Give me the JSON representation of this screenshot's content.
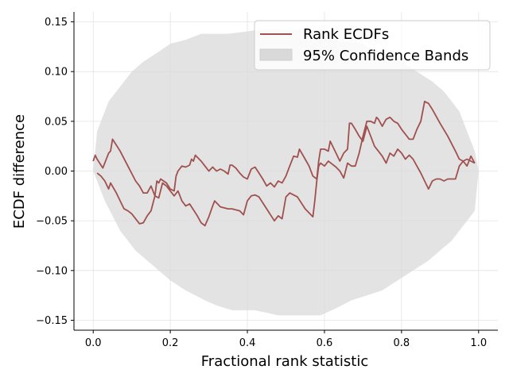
{
  "chart_data": {
    "type": "line",
    "xlabel": "Fractional rank statistic",
    "ylabel": "ECDF difference",
    "xlim": [
      -0.05,
      1.05
    ],
    "ylim": [
      -0.16,
      0.16
    ],
    "grid": true,
    "legend_position": "top-right",
    "x_ticks": [
      0.0,
      0.2,
      0.4,
      0.6,
      0.8,
      1.0
    ],
    "x_tick_labels": [
      "0.0",
      "0.2",
      "0.4",
      "0.6",
      "0.8",
      "1.0"
    ],
    "y_ticks": [
      0.15,
      0.1,
      0.05,
      0.0,
      -0.05,
      -0.1,
      -0.15
    ],
    "y_tick_labels": [
      "0.15",
      "0.10",
      "0.05",
      "0.00",
      "−0.05",
      "−0.10",
      "−0.15"
    ],
    "series": [
      {
        "name": "Rank ECDFs",
        "color": "#a0504f",
        "points": [
          [
            0.0,
            0.01
          ],
          [
            0.005,
            0.016
          ],
          [
            0.01,
            0.012
          ],
          [
            0.025,
            0.003
          ],
          [
            0.04,
            0.018
          ],
          [
            0.045,
            0.02
          ],
          [
            0.05,
            0.032
          ],
          [
            0.07,
            0.02
          ],
          [
            0.09,
            0.005
          ],
          [
            0.11,
            -0.01
          ],
          [
            0.12,
            -0.015
          ],
          [
            0.13,
            -0.022
          ],
          [
            0.14,
            -0.022
          ],
          [
            0.15,
            -0.015
          ],
          [
            0.16,
            -0.025
          ],
          [
            0.17,
            -0.027
          ],
          [
            0.18,
            -0.012
          ],
          [
            0.19,
            -0.015
          ],
          [
            0.2,
            -0.02
          ],
          [
            0.21,
            -0.025
          ],
          [
            0.22,
            -0.02
          ],
          [
            0.23,
            -0.03
          ],
          [
            0.24,
            -0.035
          ],
          [
            0.25,
            -0.033
          ],
          [
            0.27,
            -0.045
          ],
          [
            0.28,
            -0.052
          ],
          [
            0.29,
            -0.055
          ],
          [
            0.3,
            -0.046
          ],
          [
            0.31,
            -0.035
          ],
          [
            0.315,
            -0.03
          ],
          [
            0.33,
            -0.036
          ],
          [
            0.34,
            -0.037
          ],
          [
            0.35,
            -0.038
          ],
          [
            0.36,
            -0.038
          ],
          [
            0.37,
            -0.039
          ],
          [
            0.38,
            -0.04
          ],
          [
            0.39,
            -0.044
          ],
          [
            0.4,
            -0.03
          ],
          [
            0.41,
            -0.025
          ],
          [
            0.42,
            -0.024
          ],
          [
            0.43,
            -0.026
          ],
          [
            0.45,
            -0.038
          ],
          [
            0.47,
            -0.05
          ],
          [
            0.48,
            -0.045
          ],
          [
            0.49,
            -0.048
          ],
          [
            0.5,
            -0.026
          ],
          [
            0.51,
            -0.022
          ],
          [
            0.53,
            -0.026
          ],
          [
            0.55,
            -0.038
          ],
          [
            0.57,
            -0.046
          ],
          [
            0.575,
            -0.03
          ],
          [
            0.58,
            -0.01
          ],
          [
            0.585,
            0.005
          ],
          [
            0.59,
            0.008
          ],
          [
            0.6,
            0.005
          ],
          [
            0.61,
            0.01
          ],
          [
            0.62,
            0.007
          ],
          [
            0.63,
            0.004
          ],
          [
            0.64,
            0.0
          ],
          [
            0.65,
            -0.007
          ],
          [
            0.66,
            0.008
          ],
          [
            0.67,
            0.005
          ],
          [
            0.68,
            0.005
          ],
          [
            0.69,
            0.018
          ],
          [
            0.7,
            0.035
          ],
          [
            0.71,
            0.05
          ],
          [
            0.72,
            0.05
          ],
          [
            0.73,
            0.048
          ],
          [
            0.735,
            0.054
          ],
          [
            0.74,
            0.052
          ],
          [
            0.75,
            0.045
          ],
          [
            0.76,
            0.052
          ],
          [
            0.77,
            0.054
          ],
          [
            0.78,
            0.05
          ],
          [
            0.79,
            0.048
          ],
          [
            0.8,
            0.042
          ],
          [
            0.81,
            0.037
          ],
          [
            0.82,
            0.032
          ],
          [
            0.83,
            0.032
          ],
          [
            0.84,
            0.042
          ],
          [
            0.85,
            0.05
          ],
          [
            0.86,
            0.07
          ],
          [
            0.87,
            0.068
          ],
          [
            0.88,
            0.062
          ],
          [
            0.9,
            0.048
          ],
          [
            0.92,
            0.035
          ],
          [
            0.94,
            0.02
          ],
          [
            0.95,
            0.012
          ],
          [
            0.96,
            0.01
          ],
          [
            0.97,
            0.005
          ],
          [
            0.98,
            0.015
          ],
          [
            0.99,
            0.008
          ]
        ]
      },
      {
        "name": "Rank ECDFs",
        "color": "#a0504f",
        "points": [
          [
            0.01,
            -0.002
          ],
          [
            0.02,
            -0.005
          ],
          [
            0.03,
            -0.01
          ],
          [
            0.04,
            -0.018
          ],
          [
            0.045,
            -0.012
          ],
          [
            0.06,
            -0.022
          ],
          [
            0.07,
            -0.03
          ],
          [
            0.08,
            -0.038
          ],
          [
            0.09,
            -0.04
          ],
          [
            0.1,
            -0.043
          ],
          [
            0.11,
            -0.048
          ],
          [
            0.12,
            -0.053
          ],
          [
            0.13,
            -0.052
          ],
          [
            0.14,
            -0.045
          ],
          [
            0.15,
            -0.04
          ],
          [
            0.16,
            -0.025
          ],
          [
            0.165,
            -0.01
          ],
          [
            0.17,
            -0.012
          ],
          [
            0.175,
            -0.008
          ],
          [
            0.19,
            -0.012
          ],
          [
            0.2,
            -0.018
          ],
          [
            0.21,
            -0.02
          ],
          [
            0.215,
            -0.005
          ],
          [
            0.22,
            0.0
          ],
          [
            0.23,
            0.005
          ],
          [
            0.24,
            0.004
          ],
          [
            0.25,
            0.006
          ],
          [
            0.255,
            0.012
          ],
          [
            0.26,
            0.01
          ],
          [
            0.265,
            0.016
          ],
          [
            0.28,
            0.01
          ],
          [
            0.29,
            0.005
          ],
          [
            0.3,
            0.0
          ],
          [
            0.31,
            0.004
          ],
          [
            0.32,
            0.0
          ],
          [
            0.33,
            0.002
          ],
          [
            0.34,
            0.0
          ],
          [
            0.35,
            -0.003
          ],
          [
            0.355,
            0.006
          ],
          [
            0.36,
            0.006
          ],
          [
            0.37,
            0.003
          ],
          [
            0.38,
            -0.002
          ],
          [
            0.39,
            -0.006
          ],
          [
            0.4,
            -0.008
          ],
          [
            0.41,
            0.002
          ],
          [
            0.42,
            0.004
          ],
          [
            0.43,
            -0.002
          ],
          [
            0.44,
            -0.008
          ],
          [
            0.45,
            -0.015
          ],
          [
            0.46,
            -0.012
          ],
          [
            0.47,
            -0.016
          ],
          [
            0.48,
            -0.01
          ],
          [
            0.49,
            -0.012
          ],
          [
            0.5,
            -0.005
          ],
          [
            0.51,
            0.005
          ],
          [
            0.52,
            0.015
          ],
          [
            0.53,
            0.014
          ],
          [
            0.535,
            0.022
          ],
          [
            0.55,
            0.012
          ],
          [
            0.56,
            0.005
          ],
          [
            0.57,
            -0.005
          ],
          [
            0.58,
            -0.008
          ],
          [
            0.585,
            0.01
          ],
          [
            0.59,
            0.022
          ],
          [
            0.6,
            0.022
          ],
          [
            0.61,
            0.02
          ],
          [
            0.615,
            0.03
          ],
          [
            0.63,
            0.018
          ],
          [
            0.64,
            0.01
          ],
          [
            0.65,
            0.018
          ],
          [
            0.66,
            0.022
          ],
          [
            0.665,
            0.048
          ],
          [
            0.67,
            0.048
          ],
          [
            0.68,
            0.042
          ],
          [
            0.69,
            0.035
          ],
          [
            0.7,
            0.03
          ],
          [
            0.71,
            0.045
          ],
          [
            0.72,
            0.035
          ],
          [
            0.73,
            0.025
          ],
          [
            0.74,
            0.02
          ],
          [
            0.75,
            0.015
          ],
          [
            0.76,
            0.008
          ],
          [
            0.77,
            0.018
          ],
          [
            0.78,
            0.015
          ],
          [
            0.79,
            0.022
          ],
          [
            0.8,
            0.018
          ],
          [
            0.81,
            0.012
          ],
          [
            0.82,
            0.016
          ],
          [
            0.83,
            0.012
          ],
          [
            0.84,
            0.005
          ],
          [
            0.85,
            -0.002
          ],
          [
            0.86,
            -0.01
          ],
          [
            0.87,
            -0.018
          ],
          [
            0.88,
            -0.01
          ],
          [
            0.89,
            -0.008
          ],
          [
            0.9,
            -0.008
          ],
          [
            0.91,
            -0.01
          ],
          [
            0.92,
            -0.008
          ],
          [
            0.93,
            -0.008
          ],
          [
            0.94,
            -0.008
          ],
          [
            0.95,
            0.005
          ],
          [
            0.96,
            0.01
          ],
          [
            0.97,
            0.012
          ],
          [
            0.98,
            0.01
          ],
          [
            0.99,
            0.008
          ]
        ]
      }
    ],
    "band": {
      "name": "95% Confidence Bands",
      "color": "#d9d9d9",
      "upper": [
        [
          0.0,
          0.0
        ],
        [
          0.01,
          0.04
        ],
        [
          0.03,
          0.06
        ],
        [
          0.04,
          0.07
        ],
        [
          0.06,
          0.08
        ],
        [
          0.08,
          0.09
        ],
        [
          0.1,
          0.1
        ],
        [
          0.13,
          0.11
        ],
        [
          0.17,
          0.12
        ],
        [
          0.2,
          0.128
        ],
        [
          0.24,
          0.132
        ],
        [
          0.28,
          0.138
        ],
        [
          0.35,
          0.138
        ],
        [
          0.39,
          0.14
        ],
        [
          0.43,
          0.142
        ],
        [
          0.47,
          0.142
        ],
        [
          0.52,
          0.142
        ],
        [
          0.56,
          0.142
        ],
        [
          0.6,
          0.14
        ],
        [
          0.63,
          0.132
        ],
        [
          0.66,
          0.13
        ],
        [
          0.7,
          0.128
        ],
        [
          0.73,
          0.12
        ],
        [
          0.76,
          0.115
        ],
        [
          0.8,
          0.11
        ],
        [
          0.84,
          0.1
        ],
        [
          0.88,
          0.09
        ],
        [
          0.91,
          0.08
        ],
        [
          0.93,
          0.07
        ],
        [
          0.95,
          0.06
        ],
        [
          0.97,
          0.04
        ],
        [
          0.99,
          0.02
        ],
        [
          1.0,
          0.0
        ]
      ],
      "lower": [
        [
          0.0,
          0.0
        ],
        [
          0.01,
          -0.01
        ],
        [
          0.03,
          -0.03
        ],
        [
          0.05,
          -0.045
        ],
        [
          0.07,
          -0.06
        ],
        [
          0.09,
          -0.07
        ],
        [
          0.11,
          -0.08
        ],
        [
          0.14,
          -0.09
        ],
        [
          0.17,
          -0.1
        ],
        [
          0.2,
          -0.11
        ],
        [
          0.24,
          -0.12
        ],
        [
          0.29,
          -0.13
        ],
        [
          0.32,
          -0.135
        ],
        [
          0.36,
          -0.14
        ],
        [
          0.42,
          -0.14
        ],
        [
          0.48,
          -0.145
        ],
        [
          0.54,
          -0.145
        ],
        [
          0.59,
          -0.145
        ],
        [
          0.63,
          -0.138
        ],
        [
          0.67,
          -0.13
        ],
        [
          0.71,
          -0.125
        ],
        [
          0.75,
          -0.12
        ],
        [
          0.79,
          -0.11
        ],
        [
          0.83,
          -0.1
        ],
        [
          0.87,
          -0.09
        ],
        [
          0.9,
          -0.08
        ],
        [
          0.93,
          -0.07
        ],
        [
          0.95,
          -0.06
        ],
        [
          0.97,
          -0.05
        ],
        [
          0.99,
          -0.04
        ],
        [
          1.0,
          0.0
        ]
      ]
    }
  }
}
